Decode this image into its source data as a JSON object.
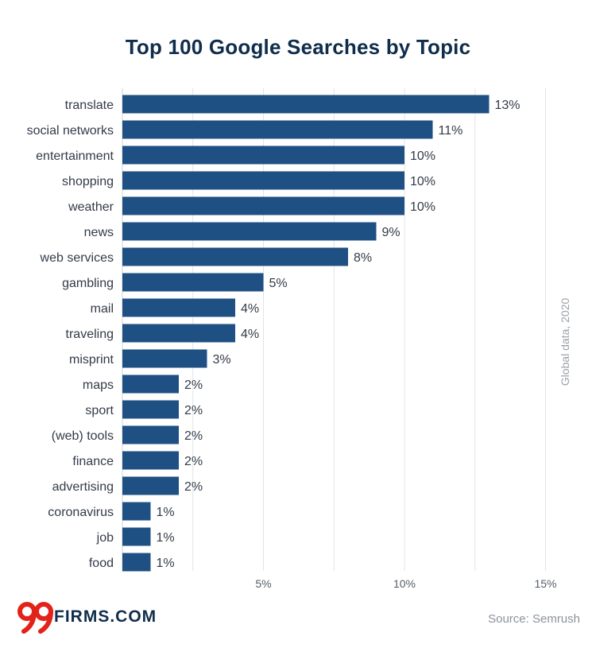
{
  "chart_data": {
    "type": "bar",
    "orientation": "horizontal",
    "title": "Top 100 Google Searches by Topic",
    "categories": [
      "translate",
      "social networks",
      "entertainment",
      "shopping",
      "weather",
      "news",
      "web services",
      "gambling",
      "mail",
      "traveling",
      "misprint",
      "maps",
      "sport",
      "(web) tools",
      "finance",
      "advertising",
      "coronavirus",
      "job",
      "food"
    ],
    "values": [
      13,
      11,
      10,
      10,
      10,
      9,
      8,
      5,
      4,
      4,
      3,
      2,
      2,
      2,
      2,
      2,
      1,
      1,
      1
    ],
    "value_labels": [
      "13%",
      "11%",
      "10%",
      "10%",
      "10%",
      "9%",
      "8%",
      "5%",
      "4%",
      "4%",
      "3%",
      "2%",
      "2%",
      "2%",
      "2%",
      "2%",
      "1%",
      "1%",
      "1%"
    ],
    "x_ticks": [
      5,
      10,
      15
    ],
    "x_tick_labels": [
      "5%",
      "10%",
      "15%"
    ],
    "xlim": [
      0,
      15
    ],
    "grid": true,
    "bar_color": "#1f5083"
  },
  "side_note": "Global data, 2020",
  "brand": {
    "text": "FIRMS.COM",
    "logo_color": "#e2231a"
  },
  "source": "Source: Semrush"
}
